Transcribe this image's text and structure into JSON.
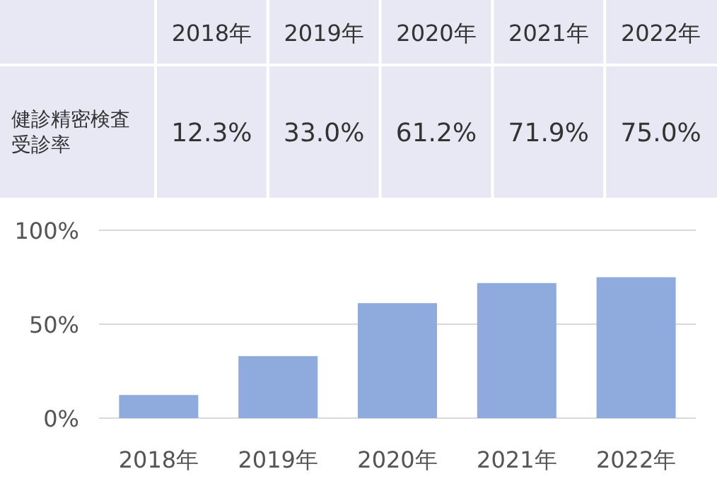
{
  "chart_data": {
    "type": "bar",
    "categories": [
      "2018年",
      "2019年",
      "2020年",
      "2021年",
      "2022年"
    ],
    "series": [
      {
        "name": "健診精密検査受診率",
        "color": "#8faadc",
        "values": [
          12.3,
          33.0,
          61.2,
          71.9,
          75.0
        ],
        "value_labels": [
          "12.3%",
          "33.0%",
          "61.2%",
          "71.9%",
          "75.0%"
        ]
      }
    ],
    "ylim": [
      0,
      100
    ],
    "yticks": [
      {
        "value": 0,
        "label": "0%"
      },
      {
        "value": 50,
        "label": "50%"
      },
      {
        "value": 100,
        "label": "100%"
      }
    ],
    "grid": "y"
  }
}
